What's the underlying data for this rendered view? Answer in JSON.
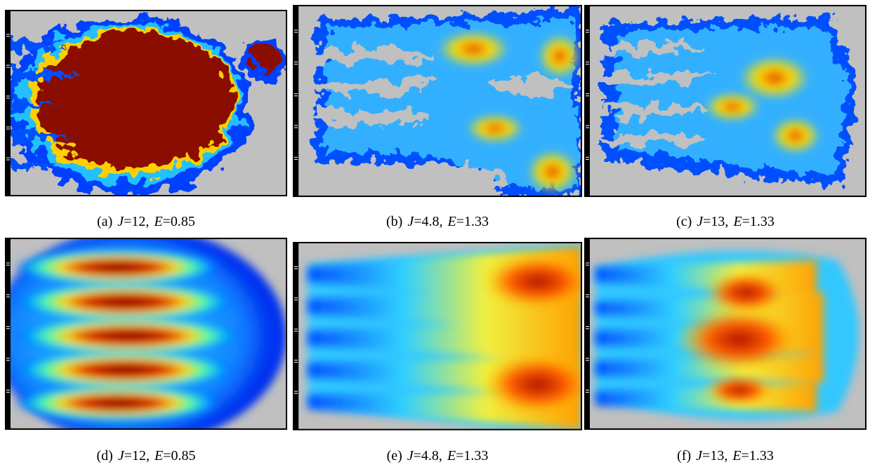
{
  "panels": [
    {
      "caption": [
        {
          "text": "(a)"
        },
        {
          "text": "J",
          "italic": true
        },
        {
          "text": "=12,"
        },
        {
          "text": "E",
          "italic": true
        },
        {
          "text": "=0.85"
        }
      ]
    },
    {
      "caption": [
        {
          "text": "(b)"
        },
        {
          "text": "J",
          "italic": true
        },
        {
          "text": "=4.8,"
        },
        {
          "text": "E",
          "italic": true
        },
        {
          "text": "=1.33"
        }
      ]
    },
    {
      "caption": [
        {
          "text": "(c)"
        },
        {
          "text": "J",
          "italic": true
        },
        {
          "text": "=13,"
        },
        {
          "text": "E",
          "italic": true
        },
        {
          "text": "=1.33"
        }
      ]
    },
    {
      "caption": [
        {
          "text": "(d)"
        },
        {
          "text": "J",
          "italic": true
        },
        {
          "text": "=12,"
        },
        {
          "text": "E",
          "italic": true
        },
        {
          "text": "=0.85"
        }
      ]
    },
    {
      "caption": [
        {
          "text": "(e)"
        },
        {
          "text": "J",
          "italic": true
        },
        {
          "text": "=4.8,"
        },
        {
          "text": "E",
          "italic": true
        },
        {
          "text": "=1.33"
        }
      ]
    },
    {
      "caption": [
        {
          "text": "(f)"
        },
        {
          "text": "J",
          "italic": true
        },
        {
          "text": "=13,"
        },
        {
          "text": "E",
          "italic": true
        },
        {
          "text": "=1.33"
        }
      ]
    }
  ]
}
